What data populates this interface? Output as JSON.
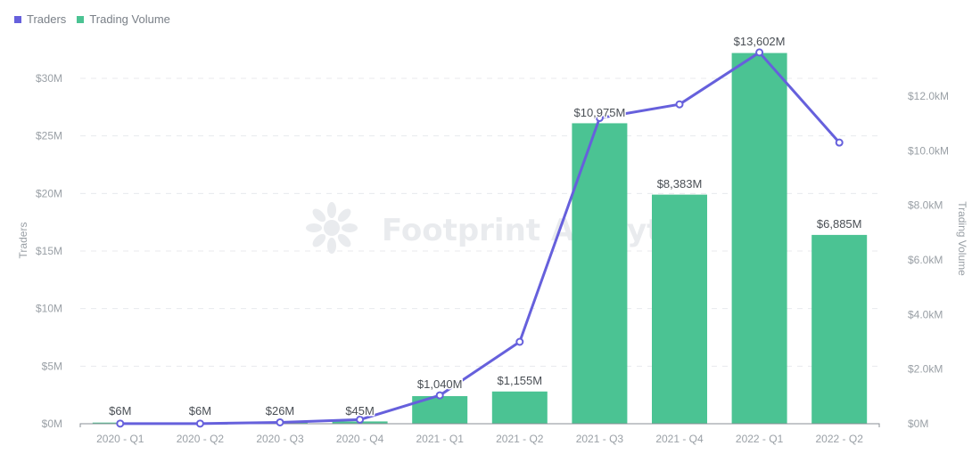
{
  "legend": {
    "items": [
      {
        "label": "Traders",
        "color": "#6660dc"
      },
      {
        "label": "Trading Volume",
        "color": "#4bc393"
      }
    ]
  },
  "watermark": "Footprint Analytics",
  "axes": {
    "left_title": "Traders",
    "right_title": "Trading Volume",
    "left_ticks": [
      "$0M",
      "$5M",
      "$10M",
      "$15M",
      "$20M",
      "$25M",
      "$30M"
    ],
    "right_ticks": [
      "$0M",
      "$2.0kM",
      "$4.0kM",
      "$6.0kM",
      "$8.0kM",
      "$10.0kM",
      "$12.0kM"
    ]
  },
  "chart_data": {
    "type": "bar",
    "title": "",
    "categories": [
      "2020 - Q1",
      "2020 - Q2",
      "2020 - Q3",
      "2020 - Q4",
      "2021 - Q1",
      "2021 - Q2",
      "2021 - Q3",
      "2021 - Q4",
      "2022 - Q1",
      "2022 - Q2"
    ],
    "series": [
      {
        "name": "Trading Volume",
        "type": "bar",
        "axis": "left",
        "color": "#4bc393",
        "values": [
          0.1,
          0.05,
          0.1,
          0.2,
          2.4,
          2.8,
          26.1,
          19.9,
          32.2,
          16.4
        ]
      },
      {
        "name": "Traders",
        "type": "line",
        "axis": "right",
        "color": "#6660dc",
        "values": [
          0.006,
          0.006,
          0.05,
          0.15,
          1.04,
          3.0,
          11.2,
          11.7,
          13.6,
          10.3
        ]
      }
    ],
    "data_labels": [
      "$6M",
      "$6M",
      "$26M",
      "$45M",
      "$1,040M",
      "$1,155M",
      "$10,975M",
      "$8,383M",
      "$13,602M",
      "$6,885M"
    ],
    "xlabel": "",
    "ylabel": "Traders",
    "y2label": "Trading Volume",
    "ylim": [
      0,
      30
    ],
    "y2lim": [
      0,
      12
    ],
    "grid": true,
    "legend_position": "top-left"
  }
}
